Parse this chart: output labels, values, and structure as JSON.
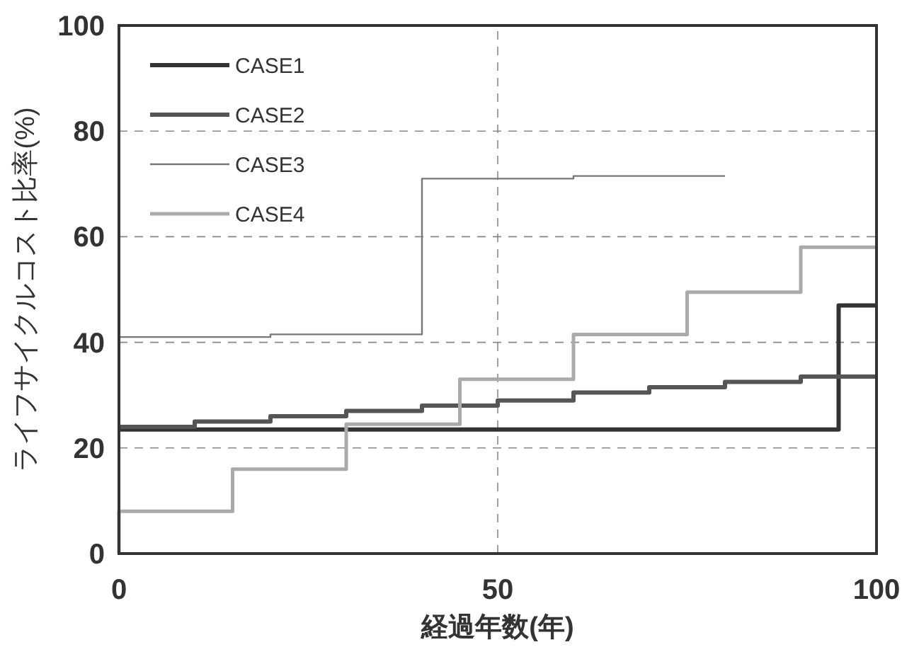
{
  "chart_data": {
    "type": "step",
    "xlabel": "経過年数(年)",
    "ylabel": "ライフサイクルコスト比率(%)",
    "xlim": [
      0,
      100
    ],
    "xticks": [
      0,
      50,
      100
    ],
    "ylim": [
      0,
      100
    ],
    "yticks": [
      0,
      20,
      40,
      60,
      80,
      100
    ],
    "grid": true,
    "legend": "top left",
    "marker": "none",
    "series": [
      {
        "name": "CASE1",
        "color": "#333333",
        "x": [
          0,
          95,
          100
        ],
        "values": [
          23.5,
          47,
          47
        ]
      },
      {
        "name": "CASE2",
        "color": "#555555",
        "x": [
          0,
          10,
          20,
          30,
          40,
          50,
          60,
          70,
          80,
          90,
          100
        ],
        "values": [
          24,
          25,
          26,
          27,
          28,
          29,
          30.5,
          31.5,
          32.5,
          33.5,
          33.5
        ]
      },
      {
        "name": "CASE3",
        "color": "#777777",
        "x": [
          0,
          20,
          40,
          60,
          80
        ],
        "values": [
          41,
          41.5,
          71,
          71.5,
          71.5
        ]
      },
      {
        "name": "CASE4",
        "color": "#aaaaaa",
        "x": [
          0,
          0,
          15,
          30,
          45,
          60,
          75,
          90,
          100
        ],
        "values": [
          0,
          8,
          16,
          24.5,
          33,
          41.5,
          49.5,
          58,
          58
        ]
      }
    ]
  }
}
